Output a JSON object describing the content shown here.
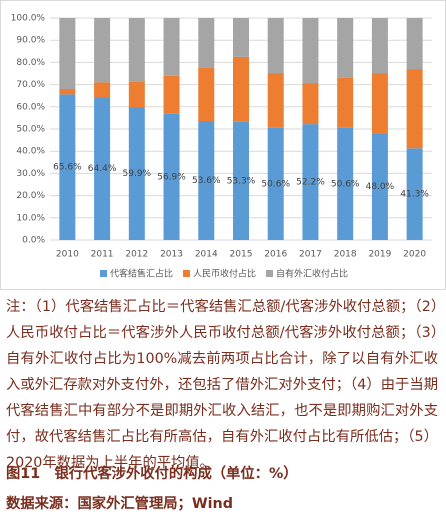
{
  "chart_data": {
    "type": "stacked_bar",
    "categories": [
      "2010",
      "2011",
      "2012",
      "2013",
      "2014",
      "2015",
      "2016",
      "2017",
      "2018",
      "2019",
      "2020"
    ],
    "series": [
      {
        "name": "代客结售汇占比",
        "color": "#5b9bd5",
        "values": [
          65.6,
          64.4,
          59.9,
          56.9,
          53.6,
          53.3,
          50.6,
          52.2,
          50.6,
          48.0,
          41.3
        ],
        "value_labels": [
          "65.6%",
          "64.4%",
          "59.9%",
          "56.9%",
          "53.6%",
          "53.3%",
          "50.6%",
          "52.2%",
          "50.6%",
          "48.0%",
          "41.3%"
        ]
      },
      {
        "name": "人民币收付占比",
        "color": "#ed7d31",
        "values": [
          2.4,
          6.6,
          11.6,
          17.1,
          23.9,
          29.2,
          24.4,
          18.3,
          22.4,
          27.0,
          35.7
        ]
      },
      {
        "name": "自有外汇收付占比",
        "color": "#a5a5a5",
        "values": [
          32.0,
          29.0,
          28.5,
          26.0,
          22.5,
          17.5,
          25.0,
          29.5,
          27.0,
          25.0,
          23.0
        ]
      }
    ],
    "ylim": [
      0,
      100
    ],
    "yticks": [
      {
        "value": 0,
        "label": "0.0%"
      },
      {
        "value": 10,
        "label": "10.0%"
      },
      {
        "value": 20,
        "label": "20.0%"
      },
      {
        "value": 30,
        "label": "30.0%"
      },
      {
        "value": 40,
        "label": "40.0%"
      },
      {
        "value": 50,
        "label": "50.0%"
      },
      {
        "value": 60,
        "label": "60.0%"
      },
      {
        "value": 70,
        "label": "70.0%"
      },
      {
        "value": 80,
        "label": "80.0%"
      },
      {
        "value": 90,
        "label": "90.0%"
      },
      {
        "value": 100,
        "label": "100.0%"
      }
    ],
    "grid": true,
    "legend": "bottom"
  },
  "notes": "注：（1）代客结售汇占比＝代客结售汇总额/代客涉外收付总额；（2）人民币收付占比＝代客涉外人民币收付总额/代客涉外收付总额；（3）自有外汇收付占比为100%减去前两项占比合计，除了以自有外汇收入或外汇存款对外支付外，还包括了借外汇对外支付；（4）由于当期代客结售汇中有部分不是即期外汇收入结汇，也不是即期购汇对外支付，故代客结售汇占比有所高估，自有外汇收付占比有所低估；（5）2020年数据为上半年的平均值。",
  "caption": "图11　银行代客涉外收付的构成（单位：%）",
  "source": "数据来源：国家外汇管理局；Wind"
}
